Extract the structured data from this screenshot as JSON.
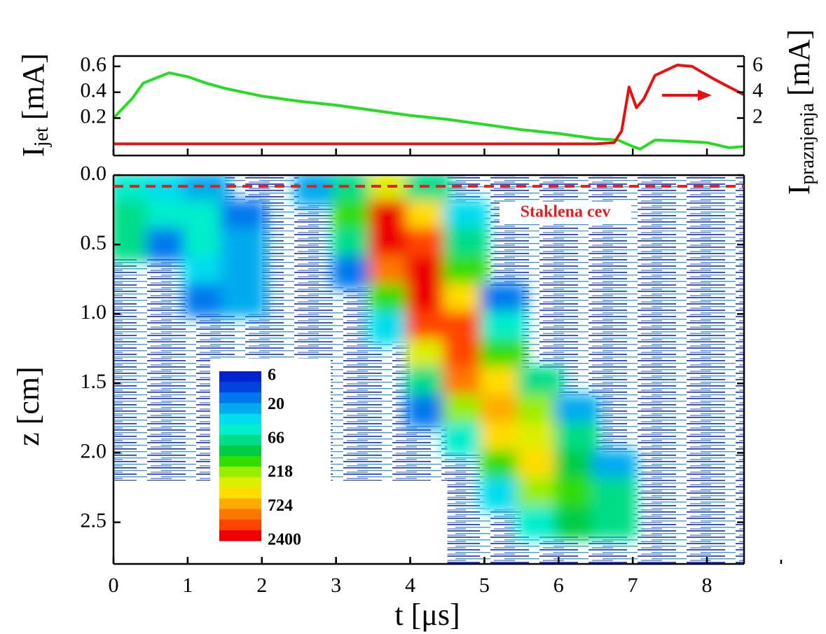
{
  "chart_data": [
    {
      "type": "line",
      "ylabel": {
        "main": "I",
        "sub": "jet",
        "unit": "[mA]"
      },
      "y2label": {
        "main": "I",
        "sub": "praznjenja",
        "unit": "[mA]"
      },
      "xlim": [
        0,
        8.5
      ],
      "ylim": [
        -0.09,
        0.68
      ],
      "yticks": [
        0.2,
        0.4,
        0.6
      ],
      "y2lim": [
        -0.9,
        6.8
      ],
      "y2ticks": [
        2,
        4,
        6
      ],
      "series": [
        {
          "color": "#22dd22",
          "x": [
            0,
            0.25,
            0.4,
            0.75,
            1,
            1.25,
            1.5,
            2,
            2.5,
            3,
            3.5,
            4,
            4.5,
            5,
            5.5,
            6,
            6.5,
            6.8,
            7,
            7.1,
            7.3,
            7.7,
            8,
            8.3,
            8.5
          ],
          "values": [
            0.2,
            0.35,
            0.47,
            0.55,
            0.52,
            0.47,
            0.43,
            0.37,
            0.33,
            0.3,
            0.26,
            0.22,
            0.19,
            0.15,
            0.11,
            0.08,
            0.04,
            0.03,
            -0.02,
            -0.04,
            0.03,
            0.02,
            0.01,
            -0.03,
            -0.02
          ]
        },
        {
          "color": "#e81010",
          "axis": "y2",
          "x": [
            0,
            6.5,
            6.75,
            6.85,
            6.95,
            7.05,
            7.15,
            7.3,
            7.6,
            7.8,
            8.1,
            8.5
          ],
          "values": [
            0,
            0,
            0.1,
            1,
            4.4,
            2.8,
            3.5,
            5.3,
            6.1,
            6.0,
            5,
            3.8
          ]
        }
      ]
    },
    {
      "type": "contour",
      "xlabel": "t [μs]",
      "ylabel": "z [cm]",
      "xlim": [
        0,
        8.5
      ],
      "xticks": [
        0,
        1,
        2,
        3,
        4,
        5,
        6,
        7,
        8
      ],
      "ylim": [
        0,
        2.8
      ],
      "y_inverted": true,
      "yticks": [
        {
          "value": 0,
          "label": "0.0"
        },
        0.5,
        {
          "value": 1,
          "label": "1.0"
        },
        1.5,
        {
          "value": 2,
          "label": "2.0"
        },
        2.5
      ],
      "annotation": "Staklena cev",
      "hline": 0.08,
      "hline_color": "#e02020",
      "x": [
        0.25,
        0.75,
        1.25,
        1.75,
        2.25,
        2.75,
        3.25,
        3.75,
        4.25,
        4.75,
        5.25,
        5.75,
        6.25,
        6.75,
        7.25,
        7.75,
        8.25
      ],
      "y": [
        0.1,
        0.3,
        0.5,
        0.7,
        0.9,
        1.1,
        1.3,
        1.5,
        1.7,
        1.9,
        2.1,
        2.3,
        2.5,
        2.7
      ],
      "z": [
        [
          40,
          30,
          25,
          12,
          10,
          25,
          80,
          300,
          60,
          12,
          10,
          9,
          9,
          9,
          8,
          12,
          12
        ],
        [
          70,
          40,
          50,
          15,
          9,
          10,
          150,
          2400,
          500,
          30,
          9,
          8,
          8,
          8,
          8,
          12,
          12
        ],
        [
          60,
          15,
          40,
          20,
          8,
          8,
          60,
          2400,
          1500,
          60,
          8,
          8,
          8,
          8,
          8,
          10,
          10
        ],
        [
          10,
          9,
          30,
          25,
          8,
          8,
          15,
          900,
          2400,
          150,
          10,
          8,
          8,
          8,
          8,
          9,
          9
        ],
        [
          8,
          8,
          15,
          20,
          8,
          8,
          9,
          150,
          2400,
          400,
          15,
          8,
          8,
          8,
          8,
          8,
          8
        ],
        [
          7,
          7,
          8,
          12,
          9,
          8,
          8,
          30,
          1500,
          1200,
          40,
          9,
          8,
          8,
          8,
          8,
          8
        ],
        [
          7,
          7,
          7,
          8,
          10,
          8,
          8,
          10,
          300,
          1200,
          150,
          10,
          8,
          8,
          8,
          8,
          8
        ],
        [
          7,
          7,
          7,
          7,
          7,
          7,
          8,
          8,
          60,
          900,
          500,
          60,
          9,
          8,
          8,
          8,
          8
        ],
        [
          7,
          7,
          7,
          7,
          7,
          7,
          8,
          8,
          15,
          200,
          600,
          200,
          20,
          8,
          8,
          8,
          8
        ],
        [
          7,
          7,
          7,
          7,
          7,
          7,
          8,
          8,
          9,
          40,
          500,
          300,
          60,
          9,
          8,
          8,
          8
        ],
        [
          7,
          7,
          7,
          7,
          7,
          8,
          8,
          8,
          8,
          12,
          150,
          400,
          100,
          20,
          8,
          8,
          8
        ],
        [
          3,
          3,
          3,
          3,
          3,
          3,
          3,
          3,
          3,
          8,
          30,
          200,
          150,
          60,
          10,
          8,
          8
        ],
        [
          3,
          3,
          3,
          3,
          3,
          3,
          3,
          3,
          3,
          8,
          9,
          40,
          100,
          60,
          9,
          8,
          8
        ],
        [
          3,
          3,
          3,
          3,
          3,
          3,
          3,
          3,
          3,
          8,
          8,
          8,
          9,
          9,
          8,
          8,
          8
        ]
      ],
      "colorbar": {
        "ticks": [
          6,
          20,
          66,
          218,
          724,
          2400
        ],
        "colors": [
          "#0022cc",
          "#0044dd",
          "#0077ee",
          "#00aaee",
          "#00ddee",
          "#00eecc",
          "#00dd88",
          "#00cc44",
          "#33dd00",
          "#99ee00",
          "#ddee00",
          "#ffdd00",
          "#ffaa00",
          "#ff7700",
          "#ff4400",
          "#ee0000"
        ]
      }
    }
  ]
}
